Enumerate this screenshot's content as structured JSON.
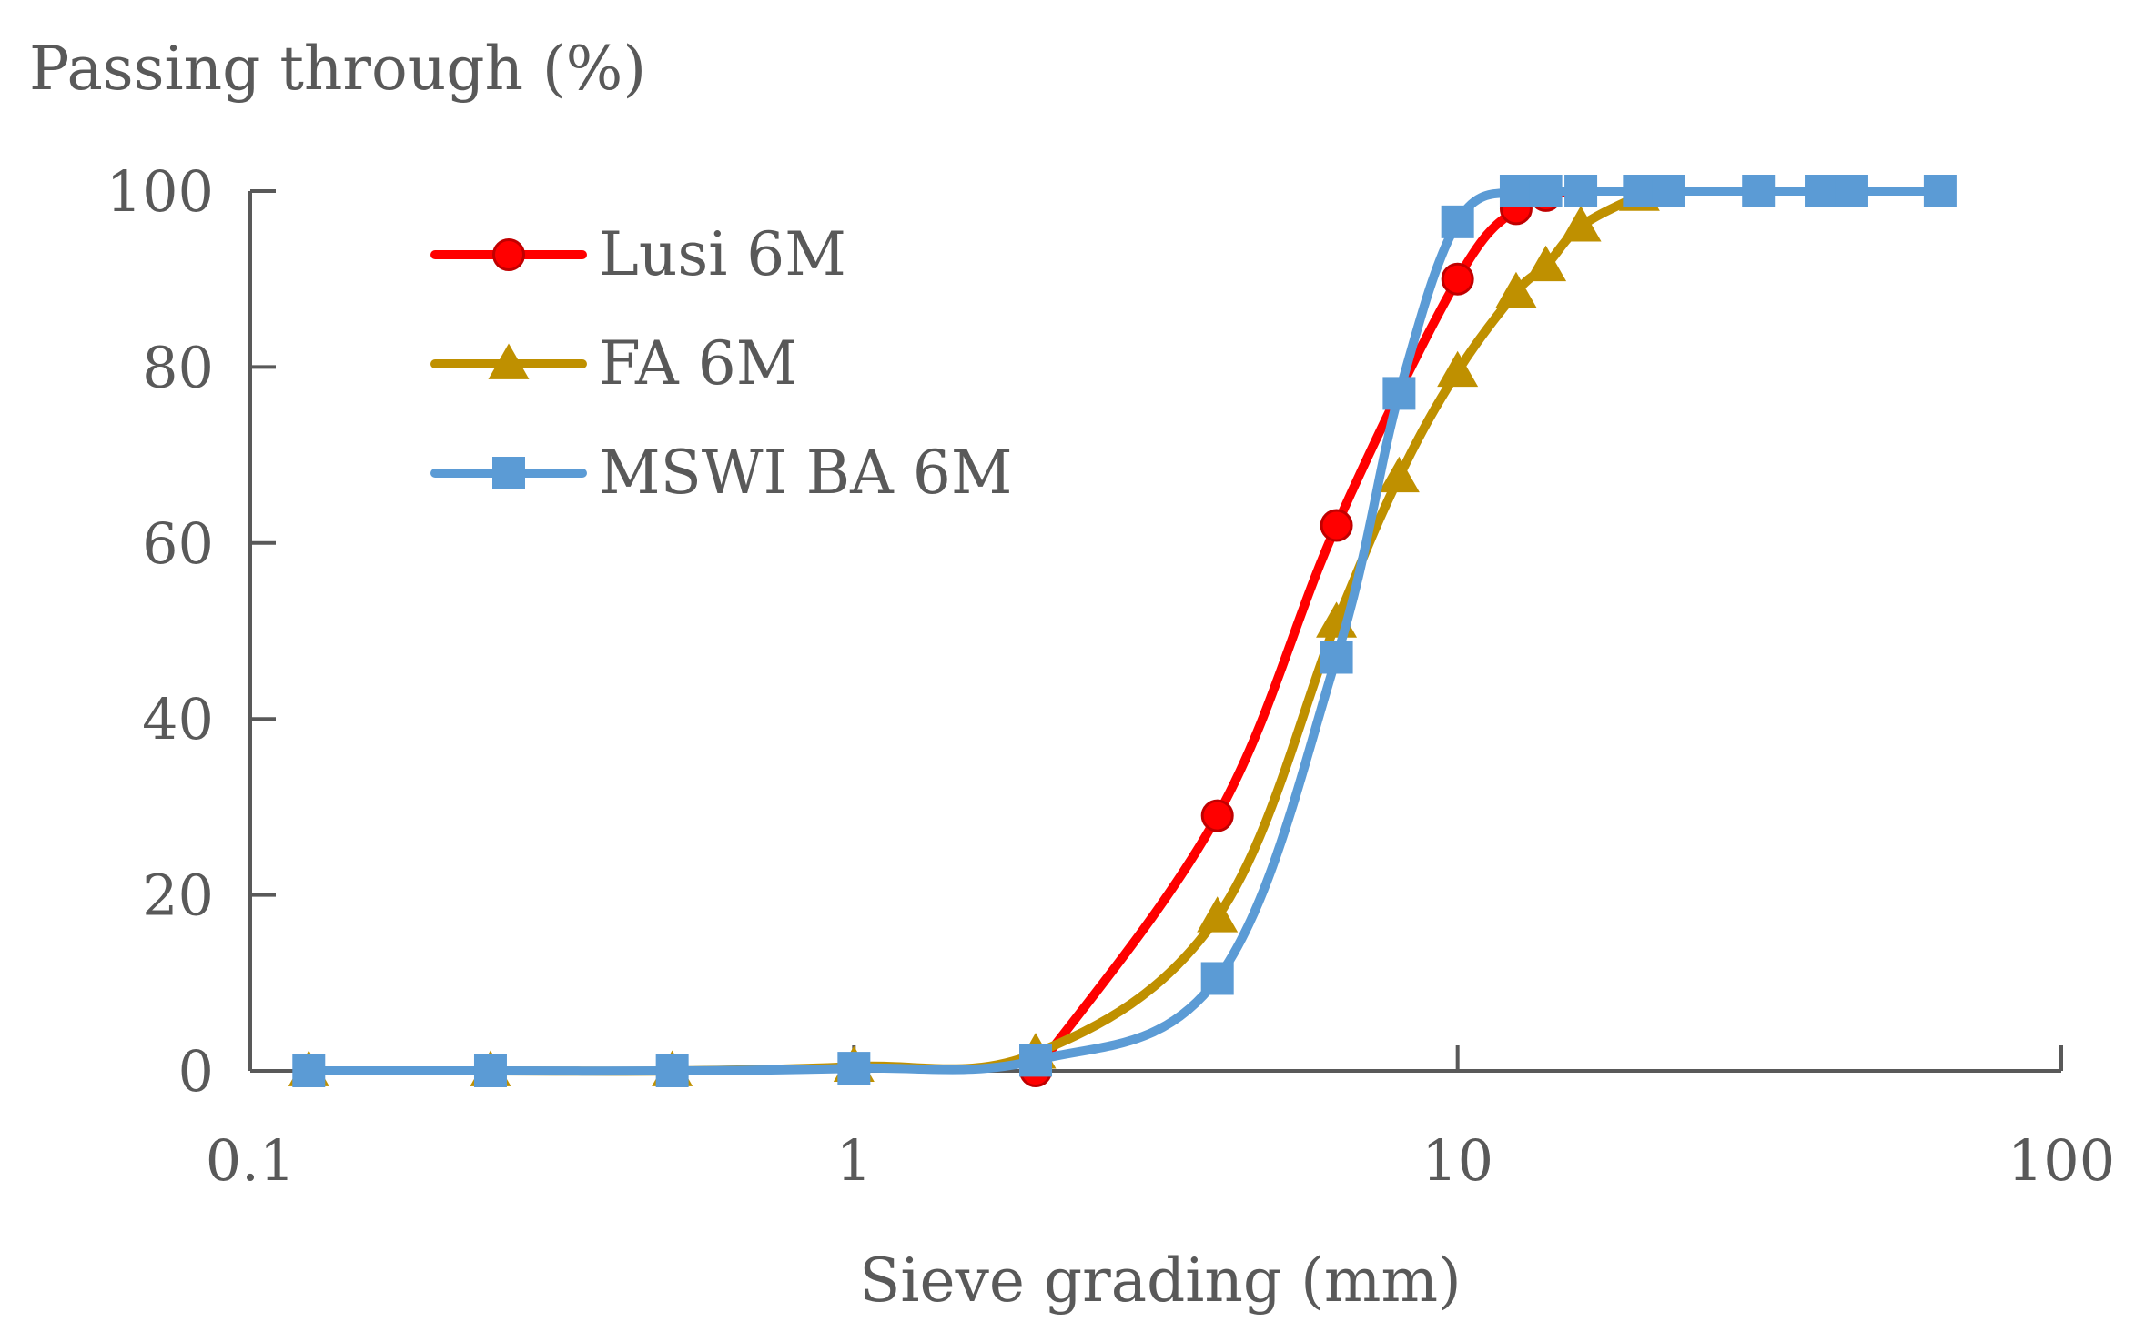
{
  "chart_data": {
    "type": "line",
    "title": "",
    "xlabel": "Sieve grading (mm)",
    "ylabel": "Passing through (%)",
    "xscale": "log",
    "xlim": [
      0.1,
      100
    ],
    "ylim": [
      0,
      100
    ],
    "xticks": [
      0.1,
      1,
      10,
      100
    ],
    "xtick_labels": [
      "0.1",
      "1",
      "10",
      "100"
    ],
    "yticks": [
      0,
      20,
      40,
      60,
      80,
      100
    ],
    "ytick_labels": [
      "0",
      "20",
      "40",
      "60",
      "80",
      "100"
    ],
    "grid": false,
    "legend_position": "top-left",
    "series": [
      {
        "name": "Lusi 6M",
        "color": "#ff0000",
        "marker": "circle",
        "x": [
          2,
          4,
          6.3,
          10,
          12.5,
          14,
          16
        ],
        "y": [
          0,
          29,
          62,
          90,
          98,
          99.5,
          100
        ]
      },
      {
        "name": "FA 6M",
        "color": "#bf9000",
        "marker": "triangle",
        "x": [
          0.125,
          0.25,
          0.5,
          1,
          2,
          4,
          6.3,
          8,
          10,
          12.5,
          14,
          16,
          20
        ],
        "y": [
          0,
          0,
          0,
          0.5,
          2,
          17.5,
          51,
          67.5,
          79.5,
          88.5,
          91.5,
          96,
          99.5
        ]
      },
      {
        "name": "MSWI BA 6M",
        "color": "#5b9bd5",
        "marker": "square",
        "x": [
          0.125,
          0.25,
          0.5,
          1,
          2,
          4,
          6.3,
          8,
          10,
          12.5,
          14,
          16,
          20,
          22.4,
          31.5,
          40,
          45,
          63
        ],
        "y": [
          0,
          0,
          0,
          0.3,
          1.2,
          10.5,
          47,
          77,
          96.5,
          100,
          100,
          100,
          100,
          100,
          100,
          100,
          100,
          100
        ]
      }
    ]
  }
}
